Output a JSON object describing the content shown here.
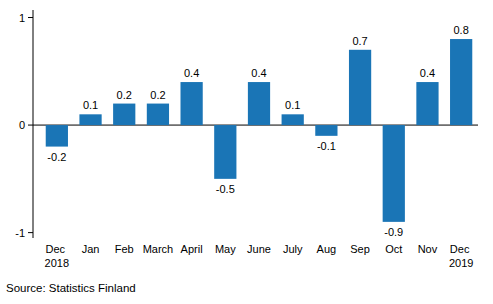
{
  "chart_data": {
    "type": "bar",
    "categories": [
      "Dec 2018",
      "Jan",
      "Feb",
      "March",
      "April",
      "May",
      "June",
      "July",
      "Aug",
      "Sep",
      "Oct",
      "Nov",
      "Dec 2019"
    ],
    "values": [
      -0.2,
      0.1,
      0.2,
      0.2,
      0.4,
      -0.5,
      0.4,
      0.1,
      -0.1,
      0.7,
      -0.9,
      0.4,
      0.8
    ],
    "color": "#1a75b6",
    "ylim": [
      -1.05,
      1.07
    ],
    "yticks": [
      -1,
      0,
      1
    ],
    "grid": false,
    "data_labels": true,
    "source": "Source: Statistics Finland"
  }
}
